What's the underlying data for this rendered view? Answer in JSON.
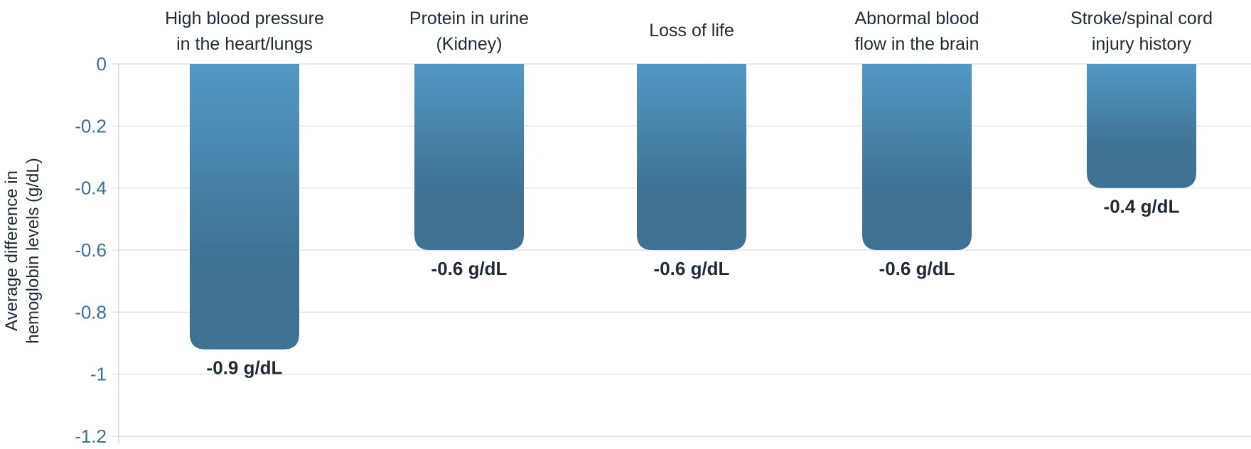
{
  "chart_data": {
    "type": "bar",
    "categories": [
      [
        "High blood pressure",
        "in the heart/lungs"
      ],
      [
        "Protein in urine",
        "(Kidney)"
      ],
      [
        "Loss of life"
      ],
      [
        "Abnormal blood",
        "flow in the brain"
      ],
      [
        "Stroke/spinal cord",
        "injury history"
      ]
    ],
    "values": [
      -0.92,
      -0.6,
      -0.6,
      -0.6,
      -0.4
    ],
    "value_labels": [
      "-0.9 g/dL",
      "-0.6 g/dL",
      "-0.6 g/dL",
      "-0.6 g/dL",
      "-0.4 g/dL"
    ],
    "ylabel": [
      "Average difference in",
      "hemoglobin levels (g/dL)"
    ],
    "ylim": [
      -1.2,
      0
    ],
    "yticks": [
      0,
      -0.2,
      -0.4,
      -0.6,
      -0.8,
      -1,
      -1.2
    ],
    "ytick_labels": [
      "0",
      "-0.2",
      "-0.4",
      "-0.6",
      "-0.8",
      "-1",
      "-1.2"
    ],
    "grid": true,
    "legend": "none",
    "colors": {
      "bar_top": "#5198c4",
      "bar_bottom": "#3e7192",
      "tick": "#3b6f96",
      "text": "#1f2a36",
      "grid": "#d8dde2"
    }
  }
}
